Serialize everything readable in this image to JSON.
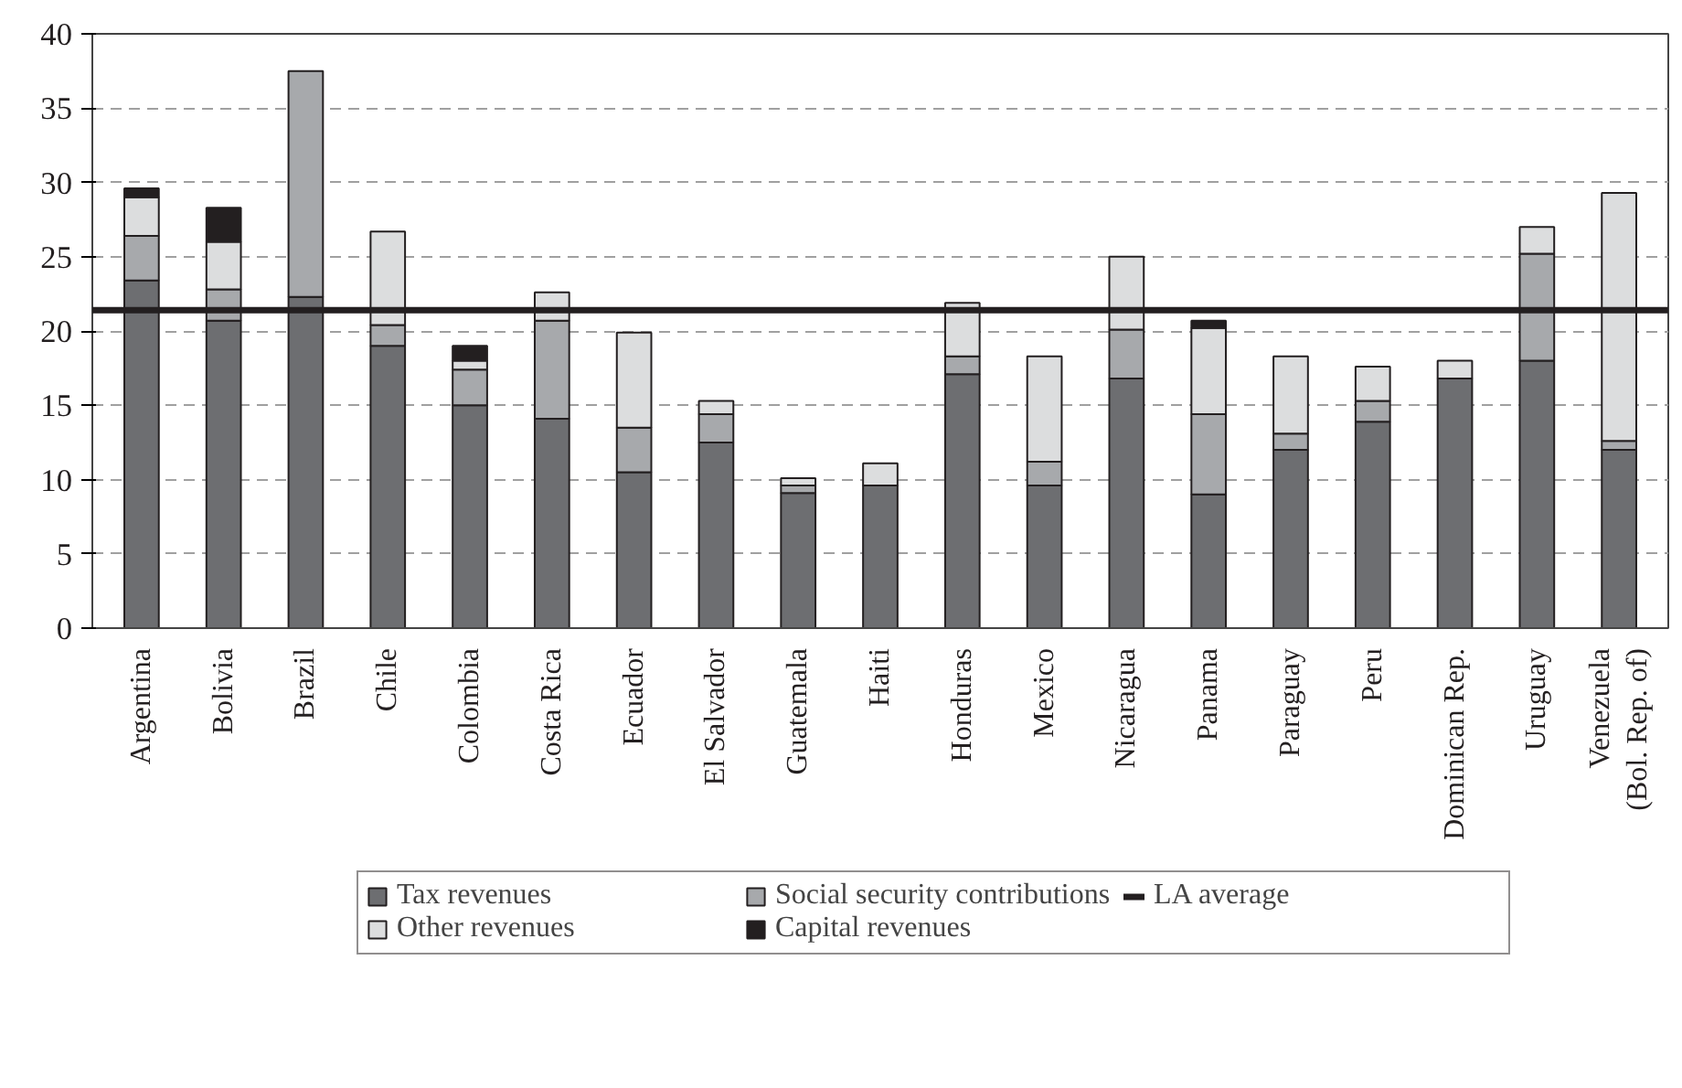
{
  "chart_data": {
    "type": "bar",
    "stacked": true,
    "categories": [
      "Argentina",
      "Bolivia",
      "Brazil",
      "Chile",
      "Colombia",
      "Costa Rica",
      "Ecuador",
      "El Salvador",
      "Guatemala",
      "Haiti",
      "Honduras",
      "Mexico",
      "Nicaragua",
      "Panama",
      "Paraguay",
      "Peru",
      "Dominican Rep.",
      "Uruguay",
      "Venezuela\n(Bol. Rep. of)"
    ],
    "series": [
      {
        "name": "Tax revenues",
        "color": "#6d6e71",
        "values": [
          23.4,
          20.7,
          22.3,
          19.0,
          15.0,
          14.1,
          10.5,
          12.5,
          9.1,
          9.6,
          17.1,
          9.6,
          16.8,
          9.0,
          12.0,
          13.9,
          16.8,
          18.0,
          12.0
        ]
      },
      {
        "name": "Social security contributions",
        "color": "#a7a9ac",
        "values": [
          3.0,
          2.1,
          15.2,
          1.4,
          2.4,
          6.6,
          3.0,
          1.9,
          0.5,
          0,
          1.2,
          1.6,
          3.3,
          5.4,
          1.1,
          1.4,
          0,
          7.2,
          0.6
        ]
      },
      {
        "name": "Other revenues",
        "color": "#dcddde",
        "values": [
          2.6,
          3.2,
          0,
          6.3,
          0.6,
          1.9,
          6.4,
          0.9,
          0.5,
          1.5,
          3.6,
          7.1,
          4.9,
          5.8,
          5.2,
          2.3,
          1.2,
          1.8,
          16.7
        ]
      },
      {
        "name": "Capital revenues",
        "color": "#231f20",
        "values": [
          0.6,
          2.3,
          0,
          0,
          1.0,
          0,
          0,
          0,
          0,
          0,
          0,
          0,
          0,
          0.5,
          0,
          0,
          0,
          0,
          0
        ]
      }
    ],
    "ref_lines": [
      {
        "axis": "y",
        "value": 21.4,
        "label": "LA average",
        "color": "#231f20"
      }
    ],
    "ylim": [
      0,
      40
    ],
    "yticks": [
      0,
      5,
      10,
      15,
      20,
      25,
      30,
      35,
      40
    ],
    "grid": "y",
    "legend": "bottom"
  }
}
